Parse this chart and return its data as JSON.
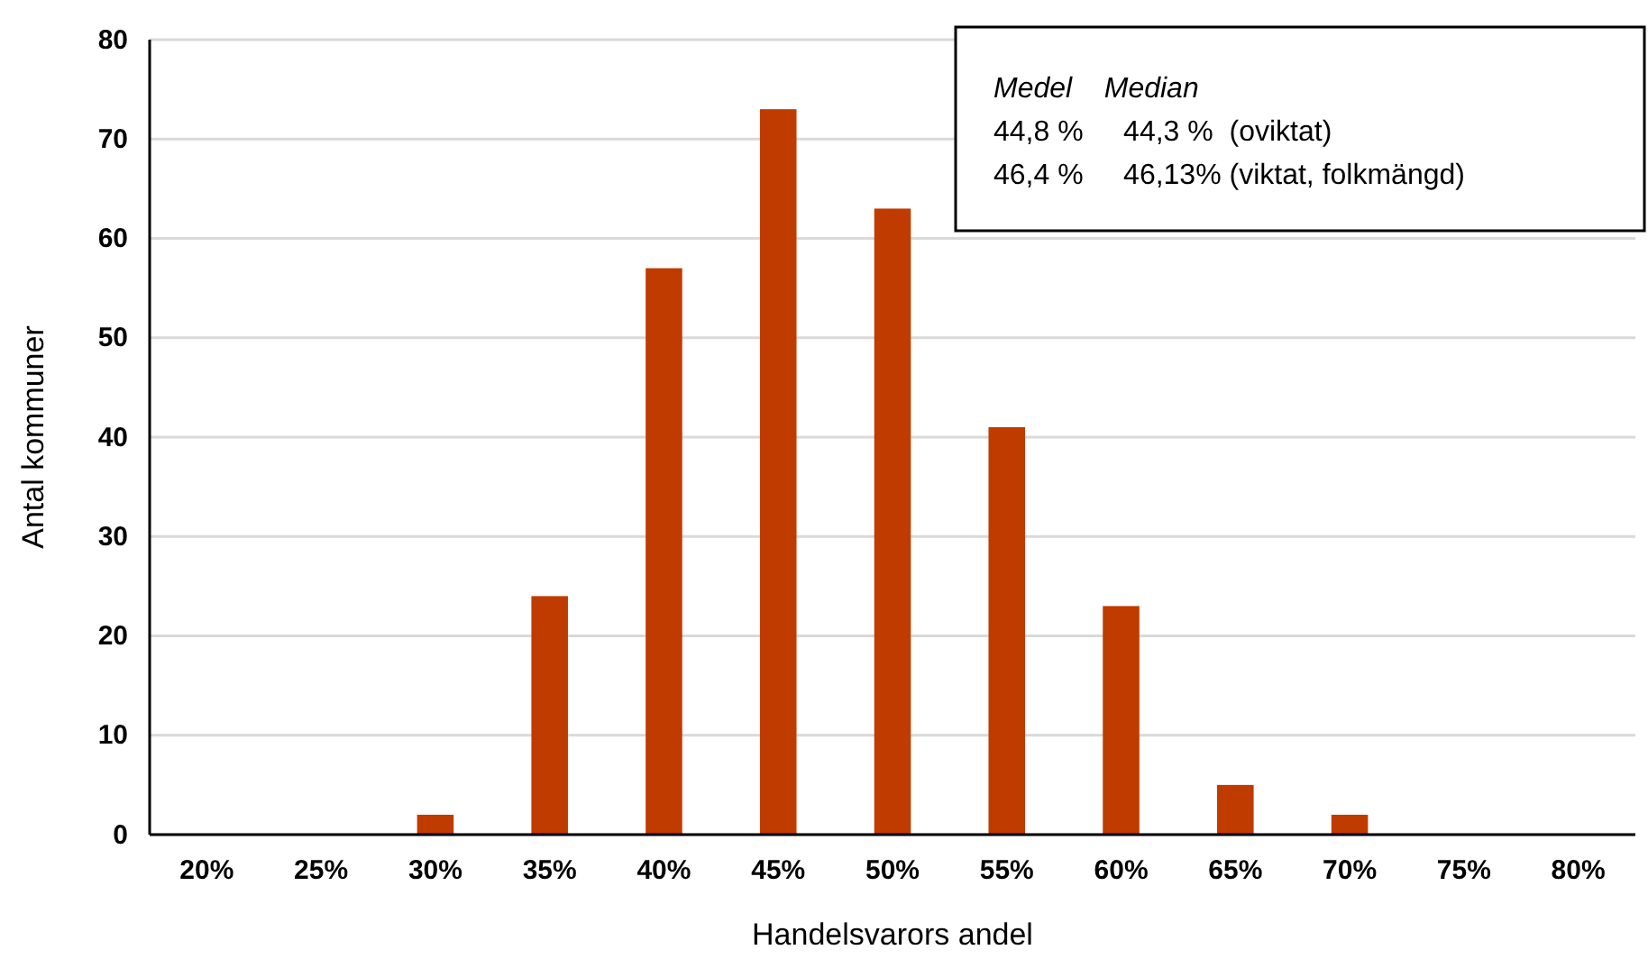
{
  "chart_data": {
    "type": "bar",
    "categories": [
      "20%",
      "25%",
      "30%",
      "35%",
      "40%",
      "45%",
      "50%",
      "55%",
      "60%",
      "65%",
      "70%",
      "75%",
      "80%"
    ],
    "values": [
      0,
      0,
      2,
      24,
      57,
      73,
      63,
      41,
      23,
      5,
      2,
      0,
      0
    ],
    "color": "#bf3b00",
    "xlabel": "Handelsvarors andel",
    "ylabel": "Antal kommuner",
    "ylim": [
      0,
      80
    ],
    "yticks": [
      0,
      10,
      20,
      30,
      40,
      50,
      60,
      70,
      80
    ],
    "grid": "y",
    "annotations": [
      "Medel    Median",
      "44,8 %     44,3 %  (oviktat)",
      "46,4 %     46,13% (viktat, folkmängd)"
    ]
  }
}
